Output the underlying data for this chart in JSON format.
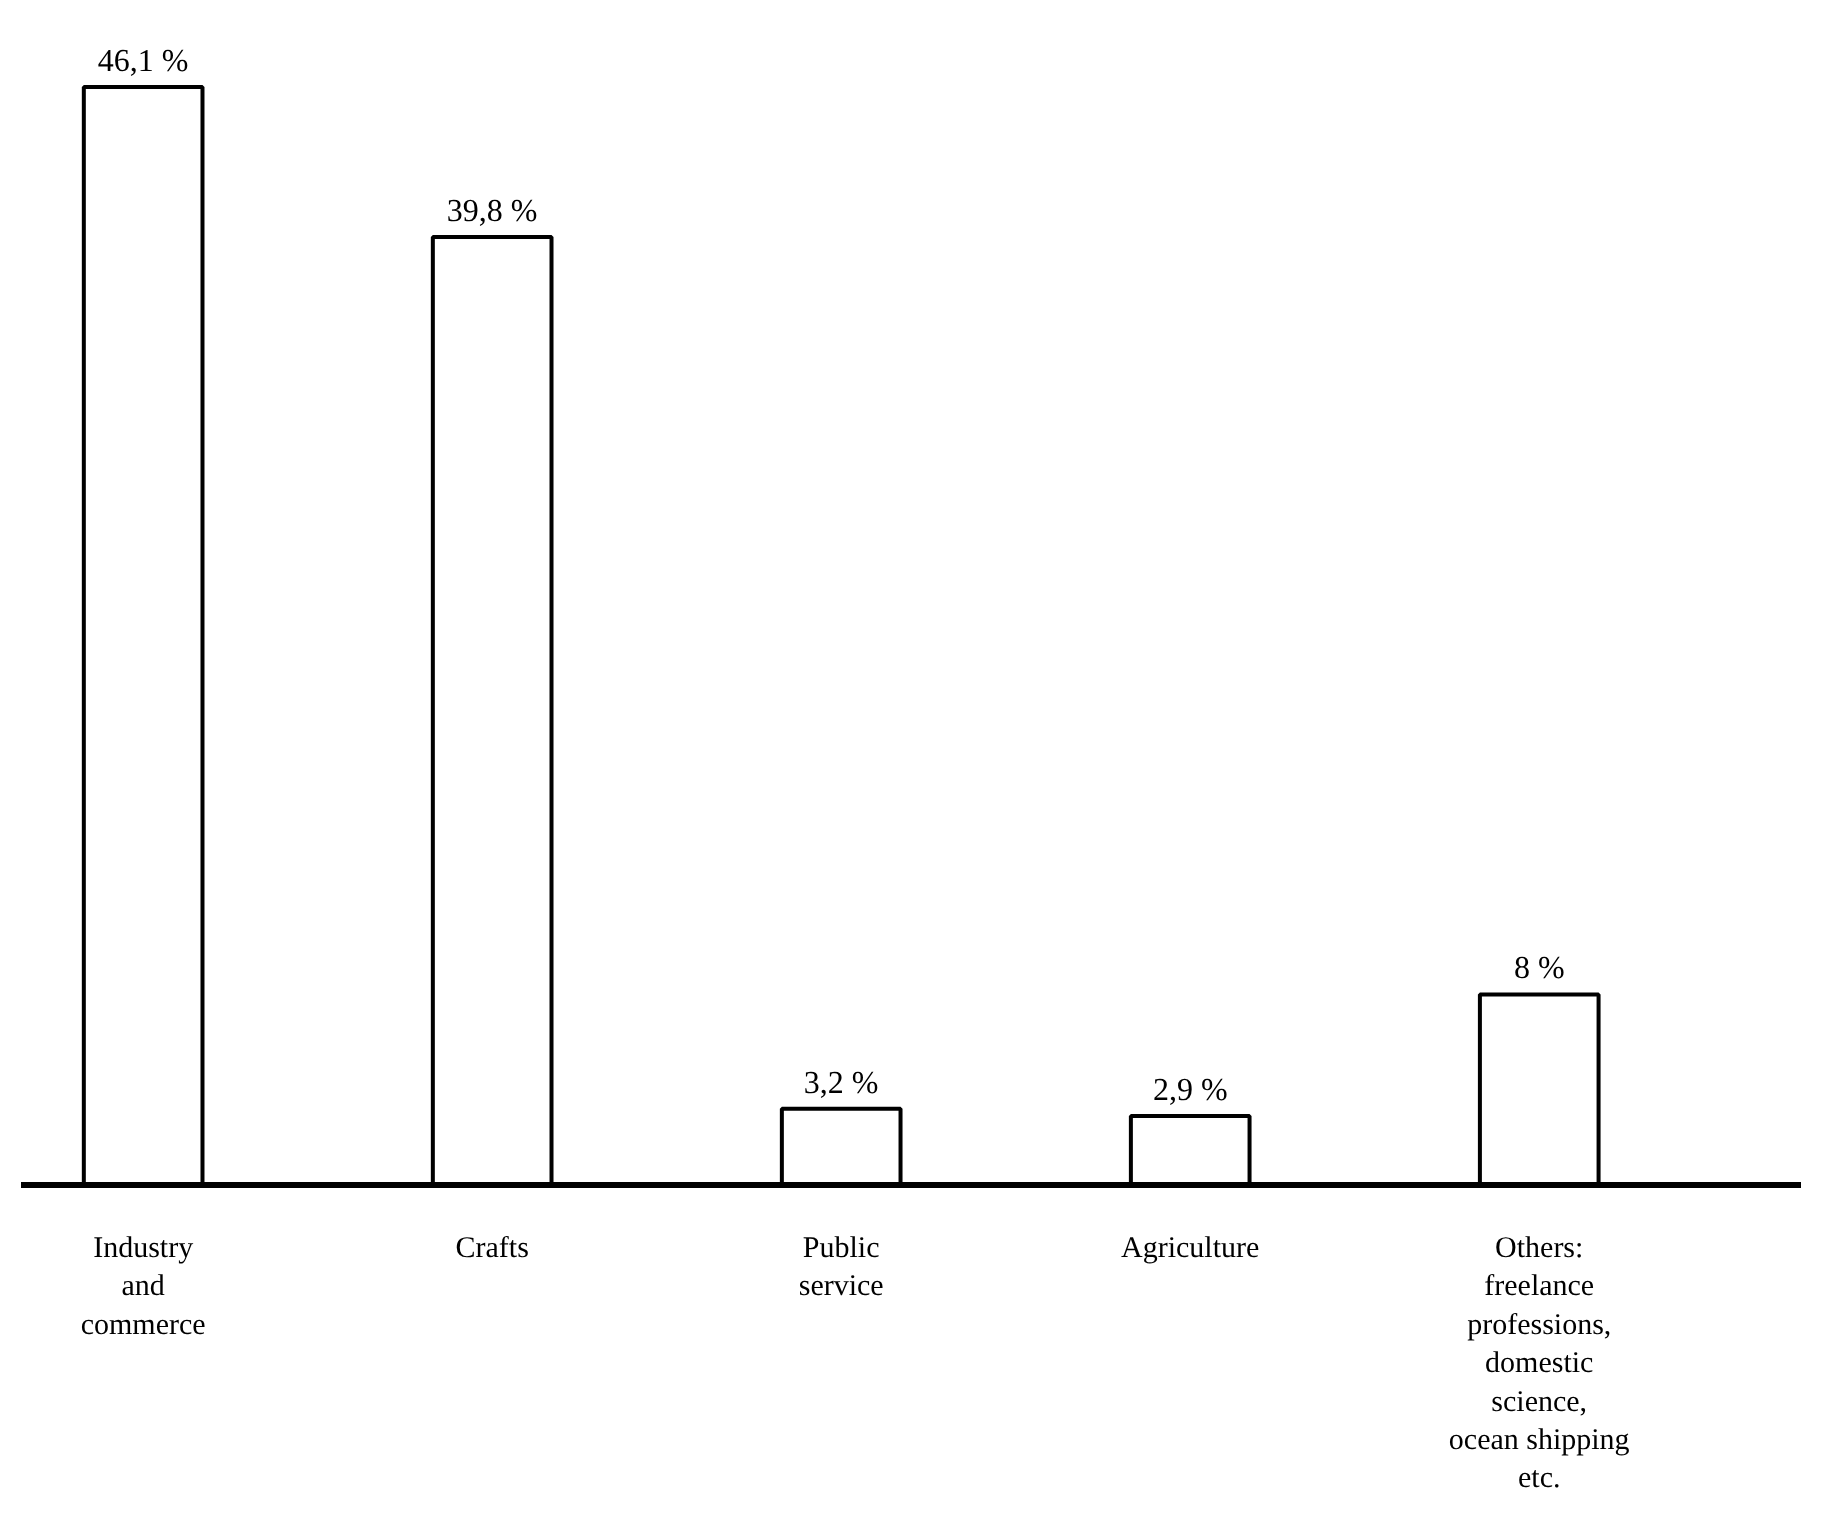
{
  "chart_data": {
    "type": "bar",
    "categories": [
      "Industry\nand\ncommerce",
      "Crafts",
      "Public\nservice",
      "Agriculture",
      "Others:\nfreelance\nprofessions,\ndomestic\nscience,\nocean shipping\netc."
    ],
    "values": [
      46.1,
      39.8,
      3.2,
      2.9,
      8
    ],
    "value_labels": [
      "46,1 %",
      "39,8 %",
      "3,2 %",
      "2,9 %",
      "8 %"
    ],
    "color": "#ffffff",
    "grid": false
  }
}
